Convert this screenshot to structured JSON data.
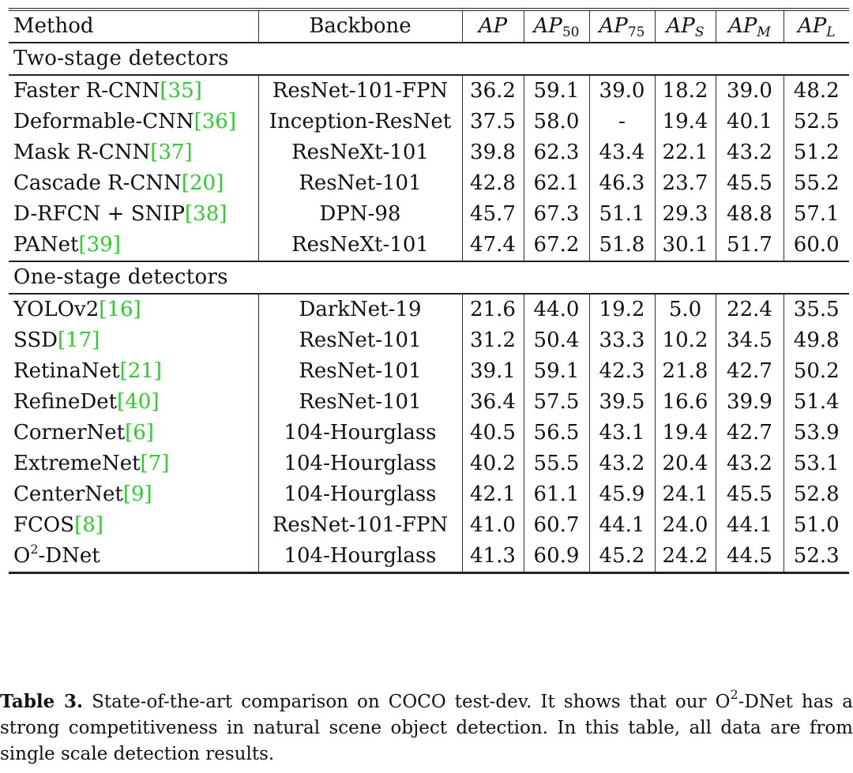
{
  "header": {
    "method": "Method",
    "backbone": "Backbone",
    "ap": "AP",
    "ap50": "AP",
    "ap50_sub": "50",
    "ap75": "AP",
    "ap75_sub": "75",
    "aps": "AP",
    "aps_sub": "S",
    "apm": "AP",
    "apm_sub": "M",
    "apl": "AP",
    "apl_sub": "L"
  },
  "sections": [
    {
      "title": "Two-stage detectors",
      "rows": [
        {
          "method": "Faster R-CNN",
          "ref": "[35]",
          "backbone": "ResNet-101-FPN",
          "ap": "36.2",
          "ap50": "59.1",
          "ap75": "39.0",
          "aps": "18.2",
          "apm": "39.0",
          "apl": "48.2"
        },
        {
          "method": "Deformable-CNN",
          "ref": "[36]",
          "backbone": "Inception-ResNet",
          "ap": "37.5",
          "ap50": "58.0",
          "ap75": "-",
          "aps": "19.4",
          "apm": "40.1",
          "apl": "52.5"
        },
        {
          "method": "Mask R-CNN",
          "ref": "[37]",
          "backbone": "ResNeXt-101",
          "ap": "39.8",
          "ap50": "62.3",
          "ap75": "43.4",
          "aps": "22.1",
          "apm": "43.2",
          "apl": "51.2"
        },
        {
          "method": "Cascade R-CNN",
          "ref": "[20]",
          "backbone": "ResNet-101",
          "ap": "42.8",
          "ap50": "62.1",
          "ap75": "46.3",
          "aps": "23.7",
          "apm": "45.5",
          "apl": "55.2"
        },
        {
          "method": "D-RFCN + SNIP",
          "ref": "[38]",
          "backbone": "DPN-98",
          "ap": "45.7",
          "ap50": "67.3",
          "ap75": "51.1",
          "aps": "29.3",
          "apm": "48.8",
          "apl": "57.1"
        },
        {
          "method": "PANet",
          "ref": "[39]",
          "backbone": "ResNeXt-101",
          "ap": "47.4",
          "ap50": "67.2",
          "ap75": "51.8",
          "aps": "30.1",
          "apm": "51.7",
          "apl": "60.0"
        }
      ]
    },
    {
      "title": "One-stage detectors",
      "rows": [
        {
          "method": "YOLOv2",
          "ref": "[16]",
          "backbone": "DarkNet-19",
          "ap": "21.6",
          "ap50": "44.0",
          "ap75": "19.2",
          "aps": "5.0",
          "apm": "22.4",
          "apl": "35.5"
        },
        {
          "method": "SSD",
          "ref": "[17]",
          "backbone": "ResNet-101",
          "ap": "31.2",
          "ap50": "50.4",
          "ap75": "33.3",
          "aps": "10.2",
          "apm": "34.5",
          "apl": "49.8"
        },
        {
          "method": "RetinaNet",
          "ref": "[21]",
          "backbone": "ResNet-101",
          "ap": "39.1",
          "ap50": "59.1",
          "ap75": "42.3",
          "aps": "21.8",
          "apm": "42.7",
          "apl": "50.2"
        },
        {
          "method": "RefineDet",
          "ref": "[40]",
          "backbone": "ResNet-101",
          "ap": "36.4",
          "ap50": "57.5",
          "ap75": "39.5",
          "aps": "16.6",
          "apm": "39.9",
          "apl": "51.4"
        },
        {
          "method": "CornerNet",
          "ref": "[6]",
          "backbone": "104-Hourglass",
          "ap": "40.5",
          "ap50": "56.5",
          "ap75": "43.1",
          "aps": "19.4",
          "apm": "42.7",
          "apl": "53.9"
        },
        {
          "method": "ExtremeNet",
          "ref": "[7]",
          "backbone": "104-Hourglass",
          "ap": "40.2",
          "ap50": "55.5",
          "ap75": "43.2",
          "aps": "20.4",
          "apm": "43.2",
          "apl": "53.1"
        },
        {
          "method": "CenterNet",
          "ref": "[9]",
          "backbone": "104-Hourglass",
          "ap": "42.1",
          "ap50": "61.1",
          "ap75": "45.9",
          "aps": "24.1",
          "apm": "45.5",
          "apl": "52.8"
        },
        {
          "method": "FCOS",
          "ref": "[8]",
          "backbone": "ResNet-101-FPN",
          "ap": "41.0",
          "ap50": "60.7",
          "ap75": "44.1",
          "aps": "24.0",
          "apm": "44.1",
          "apl": "51.0"
        },
        {
          "method": "O",
          "sup": "2",
          "method_tail": "-DNet",
          "ref": "",
          "backbone": "104-Hourglass",
          "ap": "41.3",
          "ap50": "60.9",
          "ap75": "45.2",
          "aps": "24.2",
          "apm": "44.5",
          "apl": "52.3"
        }
      ]
    }
  ],
  "caption": {
    "label": "Table 3.",
    "text_a": " State-of-the-art comparison on COCO test-dev. It shows that our O",
    "sup": "2",
    "text_b": "-DNet has a strong competitiveness in natural scene object detection. In this table, all data are from single scale detection results."
  }
}
